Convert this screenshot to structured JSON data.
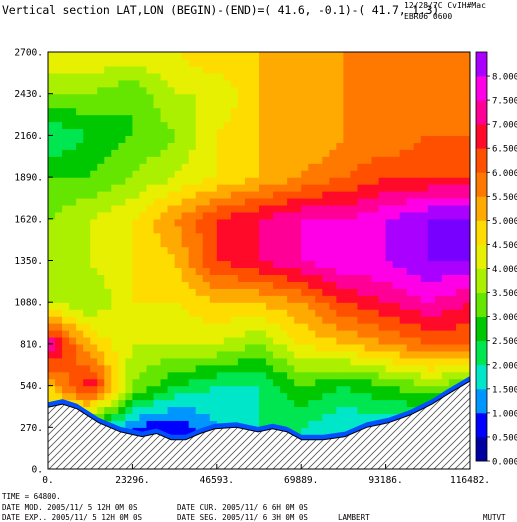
{
  "header": {
    "title": "Vertical section LAT,LON (BEGIN)-(END)=( 41.6, -0.1)-( 41.7,  1.3)",
    "stamp": "12/28/7C  CvIH#Mac",
    "run_id": "EBR06 0600"
  },
  "footer": {
    "time": "TIME =   64800.",
    "date_mod": "DATE MOD. 2005/11/ 5  12H 0M 0S",
    "date_cur": "DATE CUR. 2005/11/ 6   6H 0M 0S",
    "date_exp": "DATE EXP.. 2005/11/ 5  12H 0M 0S",
    "date_seg": "DATE SEG. 2005/11/ 6   3H 0M 0S",
    "projection": "LAMBERT",
    "field": "MUTVT"
  },
  "chart_data": {
    "type": "heatmap",
    "title": "Vertical section LAT,LON (BEGIN)-(END)=( 41.6, -0.1)-( 41.7,  1.3)",
    "xlabel": "",
    "ylabel": "",
    "xlim": [
      0,
      116482
    ],
    "ylim": [
      0,
      2700
    ],
    "x_ticks": [
      "0.",
      "23296.",
      "46593.",
      "69889.",
      "93186.",
      "116482."
    ],
    "y_ticks": [
      "0.",
      "270.",
      "540.",
      "810.",
      "1080.",
      "1350.",
      "1620.",
      "1890.",
      "2160.",
      "2430.",
      "2700."
    ],
    "x": [
      0,
      11648,
      23296,
      34945,
      46593,
      58241,
      69889,
      81538,
      93186,
      104834,
      116482
    ],
    "y": [
      270,
      540,
      810,
      1080,
      1350,
      1620,
      1890,
      2160,
      2430,
      2700
    ],
    "values": [
      [
        3.0,
        2.5,
        1.0,
        0.5,
        1.5,
        2.0,
        2.0,
        1.5,
        1.5,
        1.5,
        1.5
      ],
      [
        5.0,
        7.0,
        3.5,
        2.5,
        2.0,
        2.0,
        3.0,
        2.5,
        3.0,
        3.5,
        3.0
      ],
      [
        7.5,
        5.0,
        4.0,
        4.0,
        4.0,
        3.5,
        4.5,
        5.0,
        5.5,
        6.0,
        6.0
      ],
      [
        4.0,
        3.5,
        4.5,
        4.5,
        5.0,
        5.0,
        5.5,
        6.5,
        7.0,
        7.5,
        7.0
      ],
      [
        4.0,
        4.0,
        4.5,
        5.0,
        6.5,
        7.0,
        7.5,
        8.0,
        8.0,
        8.5,
        8.5
      ],
      [
        3.5,
        4.0,
        4.5,
        5.5,
        6.5,
        7.0,
        7.5,
        7.5,
        8.0,
        8.5,
        8.5
      ],
      [
        3.0,
        3.0,
        3.5,
        4.0,
        4.5,
        5.0,
        5.5,
        6.0,
        6.5,
        6.5,
        6.5
      ],
      [
        2.0,
        2.5,
        3.0,
        3.5,
        4.5,
        5.0,
        5.0,
        5.5,
        5.5,
        6.0,
        6.0
      ],
      [
        3.5,
        3.5,
        3.0,
        4.0,
        4.0,
        5.0,
        5.0,
        5.5,
        5.5,
        5.5,
        5.5
      ],
      [
        4.5,
        4.5,
        4.5,
        4.5,
        5.0,
        5.0,
        5.0,
        5.5,
        5.5,
        5.5,
        5.5
      ]
    ],
    "terrain": {
      "x": [
        0,
        4000,
        8000,
        14000,
        20000,
        26000,
        30000,
        34000,
        38000,
        42000,
        46000,
        52000,
        58000,
        62000,
        66000,
        70000,
        76000,
        82000,
        88000,
        94000,
        100000,
        106000,
        110000,
        116482
      ],
      "height": [
        400,
        420,
        390,
        300,
        240,
        210,
        230,
        190,
        190,
        230,
        260,
        270,
        240,
        260,
        240,
        190,
        190,
        210,
        270,
        300,
        350,
        420,
        480,
        570
      ]
    },
    "colorbar": {
      "levels": [
        0.0,
        0.5,
        1.0,
        1.5,
        2.0,
        2.5,
        3.0,
        3.5,
        4.0,
        4.5,
        5.0,
        5.5,
        6.0,
        6.5,
        7.0,
        7.5,
        8.0,
        8.5
      ],
      "tick_labels": [
        "0.000",
        "0.500",
        "1.000",
        "1.500",
        "2.000",
        "2.500",
        "3.000",
        "3.500",
        "4.000",
        "4.500",
        "5.000",
        "5.500",
        "6.000",
        "6.500",
        "7.000",
        "7.500",
        "8.000"
      ],
      "colors": [
        "#0000a0",
        "#0000ff",
        "#0096ff",
        "#00e6c8",
        "#00e650",
        "#00c800",
        "#64e600",
        "#aaf000",
        "#e6f000",
        "#ffdc00",
        "#ffaa00",
        "#ff7800",
        "#ff5000",
        "#ff0a28",
        "#ff0096",
        "#ff00e6",
        "#aa00ff",
        "#7800ff"
      ]
    },
    "grid": false,
    "legend": "colorbar-right"
  }
}
